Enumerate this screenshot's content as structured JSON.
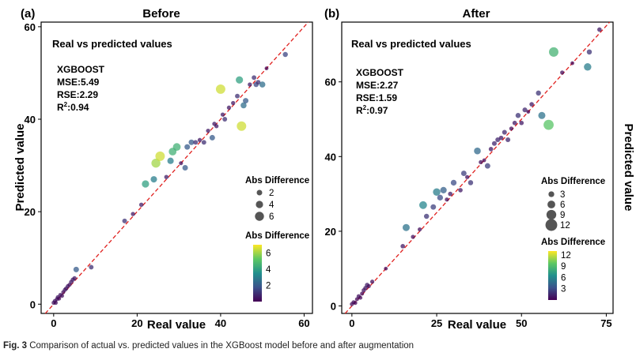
{
  "chart_data": [
    {
      "panel": "(a)",
      "title": "Before",
      "type": "scatter",
      "xlabel": "Real value",
      "ylabel": "Predicted value",
      "xlim": [
        -3,
        62
      ],
      "ylim": [
        -2,
        61
      ],
      "xticks": [
        "0",
        "20",
        "40",
        "60"
      ],
      "yticks": [
        "0",
        "20",
        "40",
        "60"
      ],
      "xtick_values": [
        0,
        20,
        40,
        60
      ],
      "ytick_values": [
        0,
        20,
        40,
        60
      ],
      "annotation_title": "Real vs predicted values",
      "model": "XGBOOST",
      "metrics": [
        "MSE:5.49",
        "RSE:2.29"
      ],
      "r2_label": "R",
      "r2_value": ":0.94",
      "size_legend": {
        "title": "Abs Difference",
        "labels": [
          "2",
          "4",
          "6"
        ],
        "values": [
          2,
          4,
          6
        ]
      },
      "color_legend": {
        "title": "Abs Difference",
        "labels": [
          "6",
          "4",
          "2"
        ],
        "values": [
          6,
          4,
          2
        ],
        "range": [
          0,
          7
        ]
      },
      "points": [
        [
          0,
          0.3,
          0.4
        ],
        [
          0.3,
          0.7,
          0.4
        ],
        [
          0.5,
          0.3,
          0.3
        ],
        [
          0.8,
          1.1,
          0.3
        ],
        [
          1,
          1.5,
          0.4
        ],
        [
          1.3,
          1.2,
          0.2
        ],
        [
          1.6,
          2,
          0.4
        ],
        [
          2,
          1.8,
          0.3
        ],
        [
          2.3,
          2.6,
          0.3
        ],
        [
          2.7,
          3.1,
          0.4
        ],
        [
          3,
          3.4,
          0.5
        ],
        [
          3.4,
          3.9,
          0.4
        ],
        [
          3.8,
          4.2,
          0.3
        ],
        [
          4.2,
          4.8,
          0.5
        ],
        [
          4.6,
          5.3,
          0.6
        ],
        [
          5,
          5.6,
          0.5
        ],
        [
          5.4,
          7.5,
          2
        ],
        [
          9,
          8,
          1
        ],
        [
          17,
          18,
          1.1
        ],
        [
          19,
          19.5,
          0.5
        ],
        [
          21,
          21.5,
          0.6
        ],
        [
          22,
          26,
          4
        ],
        [
          24,
          27,
          3
        ],
        [
          24.5,
          30.5,
          6
        ],
        [
          25.5,
          32,
          6.5
        ],
        [
          27,
          27.5,
          0.6
        ],
        [
          28,
          31,
          3
        ],
        [
          28.5,
          33,
          4.5
        ],
        [
          29.5,
          34,
          4.5
        ],
        [
          30.5,
          30.5,
          0.3
        ],
        [
          31.5,
          29.5,
          2
        ],
        [
          32,
          34,
          2
        ],
        [
          33,
          35,
          2
        ],
        [
          34,
          35,
          1
        ],
        [
          35,
          35.5,
          0.5
        ],
        [
          36,
          35,
          1
        ],
        [
          37,
          37.5,
          0.5
        ],
        [
          38,
          36,
          2
        ],
        [
          38.5,
          39,
          0.5
        ],
        [
          39,
          38.5,
          0.5
        ],
        [
          40,
          46.5,
          6.5
        ],
        [
          40.5,
          41,
          0.5
        ],
        [
          41,
          40,
          1
        ],
        [
          42,
          42.5,
          0.5
        ],
        [
          43,
          43.5,
          0.5
        ],
        [
          44,
          45,
          1
        ],
        [
          44.5,
          48.5,
          4
        ],
        [
          45,
          38.5,
          6.5
        ],
        [
          45.5,
          43,
          2.5
        ],
        [
          46,
          44,
          2
        ],
        [
          47,
          47.5,
          0.5
        ],
        [
          48,
          49,
          1
        ],
        [
          48.5,
          47.5,
          1.5
        ],
        [
          49,
          48,
          1
        ],
        [
          50,
          47.5,
          2.5
        ],
        [
          51,
          51,
          0
        ],
        [
          55.5,
          54,
          1.5
        ]
      ]
    },
    {
      "panel": "(b)",
      "title": "After",
      "type": "scatter",
      "xlabel": "Real value",
      "ylabel": "Predicted value",
      "xlim": [
        -3,
        77
      ],
      "ylim": [
        -2,
        76
      ],
      "xticks": [
        "0",
        "25",
        "50",
        "75"
      ],
      "yticks": [
        "0",
        "20",
        "40",
        "60"
      ],
      "xtick_values": [
        0,
        25,
        50,
        75
      ],
      "ytick_values": [
        0,
        20,
        40,
        60
      ],
      "annotation_title": "Real vs predicted values",
      "model": "XGBOOST",
      "metrics": [
        "MSE:2.27",
        "RSE:1.59"
      ],
      "r2_label": "R",
      "r2_value": ":0.97",
      "size_legend": {
        "title": "Abs Difference",
        "labels": [
          "3",
          "6",
          "9",
          "12"
        ],
        "values": [
          3,
          6,
          9,
          12
        ]
      },
      "color_legend": {
        "title": "Abs Difference",
        "labels": [
          "12",
          "9",
          "6",
          "3"
        ],
        "values": [
          12,
          9,
          6,
          3
        ],
        "range": [
          0,
          13
        ]
      },
      "points": [
        [
          0,
          0.5,
          0.5
        ],
        [
          0.5,
          1,
          0.5
        ],
        [
          1,
          0.8,
          0.2
        ],
        [
          1.5,
          1.8,
          0.3
        ],
        [
          2,
          2.6,
          0.6
        ],
        [
          2.5,
          2.2,
          0.3
        ],
        [
          3,
          3.3,
          0.3
        ],
        [
          3.5,
          4.2,
          0.7
        ],
        [
          4,
          4.8,
          0.8
        ],
        [
          4.5,
          5.6,
          1.1
        ],
        [
          5,
          5.3,
          0.3
        ],
        [
          6,
          6.5,
          0.5
        ],
        [
          10,
          10,
          0
        ],
        [
          15,
          16,
          1
        ],
        [
          16,
          21,
          5
        ],
        [
          18,
          18.5,
          0.5
        ],
        [
          20,
          20.5,
          0.5
        ],
        [
          21,
          27,
          6
        ],
        [
          22,
          24,
          2
        ],
        [
          24,
          26.5,
          2.5
        ],
        [
          25,
          30.5,
          5.5
        ],
        [
          26,
          29,
          3
        ],
        [
          27,
          31,
          4
        ],
        [
          28,
          28.5,
          0.5
        ],
        [
          29,
          30,
          1
        ],
        [
          30,
          33,
          3
        ],
        [
          32,
          31,
          1
        ],
        [
          33,
          35.5,
          2.5
        ],
        [
          34,
          34.5,
          0.5
        ],
        [
          35,
          33,
          2
        ],
        [
          37,
          41.5,
          4.5
        ],
        [
          38,
          38.5,
          0.5
        ],
        [
          39,
          39,
          0
        ],
        [
          40,
          37.5,
          2.5
        ],
        [
          41,
          42,
          1
        ],
        [
          42,
          43.5,
          1.5
        ],
        [
          43,
          44.5,
          1.5
        ],
        [
          44,
          45,
          1
        ],
        [
          45,
          46.5,
          1.5
        ],
        [
          46,
          44.5,
          1.5
        ],
        [
          47,
          47.5,
          0.5
        ],
        [
          48,
          49,
          1
        ],
        [
          49,
          51,
          2
        ],
        [
          50,
          49,
          1
        ],
        [
          51,
          52.5,
          1.5
        ],
        [
          52,
          52,
          0
        ],
        [
          53,
          54,
          1
        ],
        [
          55,
          57,
          2
        ],
        [
          56,
          51,
          5
        ],
        [
          58,
          48.5,
          9.5
        ],
        [
          59.5,
          68,
          8.5
        ],
        [
          62,
          62.5,
          0.5
        ],
        [
          65,
          65,
          0
        ],
        [
          69.5,
          64,
          5.5
        ],
        [
          70,
          68,
          2
        ],
        [
          73,
          74,
          1
        ]
      ]
    }
  ],
  "caption": {
    "label": "Fig. 3",
    "text": "Comparison of actual vs. predicted values in the XGBoost model before and after augmentation"
  }
}
